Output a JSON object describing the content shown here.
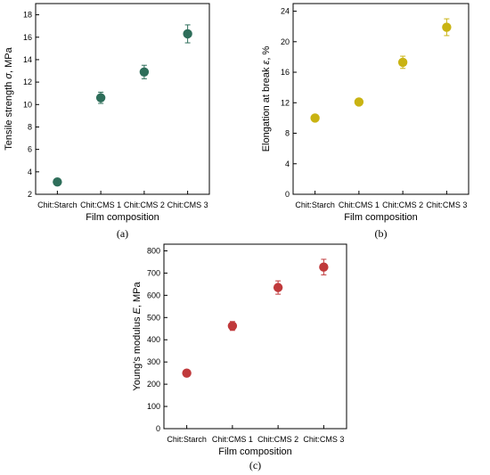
{
  "chart_data": [
    {
      "type": "scatter",
      "panel_label": "(a)",
      "categories": [
        "Chit:Starch",
        "Chit:CMS 1",
        "Chit:CMS 2",
        "Chit:CMS 3"
      ],
      "values": [
        3.1,
        10.6,
        12.9,
        16.3
      ],
      "errors": [
        0.2,
        0.5,
        0.6,
        0.8
      ],
      "xlabel": "Film composition",
      "ylabel": "Tensile strength σ, MPa",
      "ylim": [
        2,
        19
      ],
      "yticks": [
        2,
        4,
        6,
        8,
        10,
        12,
        14,
        16,
        18
      ],
      "color": "#2e6e5a"
    },
    {
      "type": "scatter",
      "panel_label": "(b)",
      "categories": [
        "Chit:Starch",
        "Chit:CMS 1",
        "Chit:CMS 2",
        "Chit:CMS 3"
      ],
      "values": [
        10.0,
        12.1,
        17.3,
        21.9
      ],
      "errors": [
        0.3,
        0.4,
        0.8,
        1.1
      ],
      "xlabel": "Film composition",
      "ylabel": "Elongation at break ε, %",
      "ylim": [
        0,
        25
      ],
      "yticks": [
        0,
        4,
        8,
        12,
        16,
        20,
        24
      ],
      "color": "#c9b312"
    },
    {
      "type": "scatter",
      "panel_label": "(c)",
      "categories": [
        "Chit:Starch",
        "Chit:CMS 1",
        "Chit:CMS 2",
        "Chit:CMS 3"
      ],
      "values": [
        250,
        462,
        635,
        727
      ],
      "errors": [
        10,
        20,
        30,
        35
      ],
      "xlabel": "Film composition",
      "ylabel": "Young's modulus E, MPa",
      "ylim": [
        0,
        830
      ],
      "yticks": [
        0,
        100,
        200,
        300,
        400,
        500,
        600,
        700,
        800
      ],
      "color": "#c0393b"
    }
  ]
}
